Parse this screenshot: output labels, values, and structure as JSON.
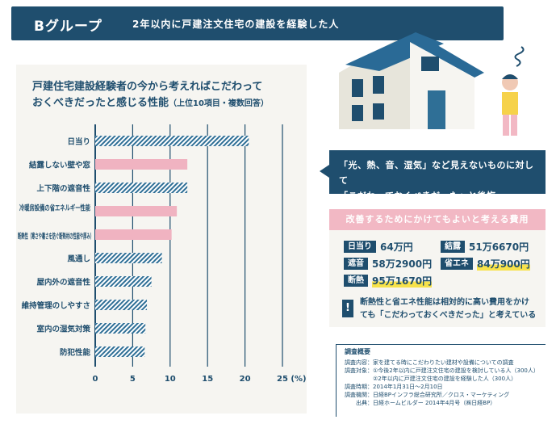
{
  "header": {
    "group": "Bグループ",
    "subtitle": "2年以内に戸建注文住宅の建設を経験した人"
  },
  "chart_title": {
    "line1": "戸建住宅建設経験者の今から考えればこだわって",
    "line2": "おくべきだったと感じる性能",
    "note": "（上位10項目・複数回答）"
  },
  "chart_data": {
    "type": "bar",
    "orientation": "horizontal",
    "categories": [
      "日当り",
      "結露しない壁や窓",
      "上下階の遮音性",
      "冷暖房設備の省エネルギー性能",
      "断熱性（寒さや暑さを防ぐ断熱材の性能や厚み）",
      "風通し",
      "屋内外の遮音性",
      "維持管理のしやすさ",
      "室内の湿気対策",
      "防犯性能"
    ],
    "values": [
      20.5,
      12.3,
      12.3,
      10.9,
      10.2,
      8.9,
      7.5,
      6.9,
      6.7,
      6.6
    ],
    "highlight": [
      false,
      true,
      false,
      true,
      true,
      false,
      false,
      false,
      false,
      false
    ],
    "xticks": [
      "0",
      "5",
      "10",
      "15",
      "20",
      "25"
    ],
    "xunit": "(%)",
    "xlim": [
      0,
      25
    ],
    "grid": true,
    "colors": {
      "normal": "#2f6f96",
      "highlight": "#f0b3c1",
      "axis": "#1f4e6e"
    }
  },
  "regret": {
    "line1": "「光、熱、音、湿気」など見えないものに対して",
    "line2": "「こだわっておくべきだった」と後悔"
  },
  "costs": {
    "title": "改善するためにかけてもよいと考える費用",
    "items": [
      {
        "tag": "日当り",
        "value": "64万円"
      },
      {
        "tag": "結露",
        "value": "51万6670円"
      },
      {
        "tag": "遮音",
        "value": "58万2900円"
      },
      {
        "tag": "省エネ",
        "value": "84万900円"
      },
      {
        "tag": "断熱",
        "value": "95万1670円"
      }
    ],
    "note_icon": "!",
    "note_line1": "断熱性と省エネ性能は相対的に高い費用をかけ",
    "note_line2": "ても「こだわっておくべきだった」と考えている"
  },
  "survey": {
    "title": "調査概要",
    "lines": [
      "調査内容：家を建てる時にこだわりたい建材や設備についての調査",
      "調査対象：①今後2年以内に戸建注文住宅の建設を検討している人（300人）",
      "　　　　　②2年以内に戸建注文住宅の建設を経験した人（300人）",
      "調査時期：2014年1月31日〜2月10日",
      "調査機関：日経BPインフラ総合研究所／クロス・マーケティング",
      "　　出典：日経ホームビルダー 2014年4月号（㈱日経BP）"
    ]
  }
}
